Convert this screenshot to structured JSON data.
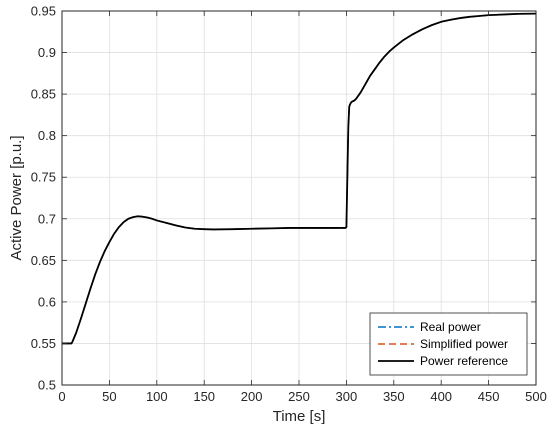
{
  "chart_data": {
    "type": "line",
    "title": "",
    "xlabel": "Time [s]",
    "ylabel": "Active Power [p.u.]",
    "xlim": [
      0,
      500
    ],
    "ylim": [
      0.5,
      0.95
    ],
    "xticks": [
      0,
      50,
      100,
      150,
      200,
      250,
      300,
      350,
      400,
      450,
      500
    ],
    "yticks": [
      0.5,
      0.55,
      0.6,
      0.65,
      0.7,
      0.75,
      0.8,
      0.85,
      0.9,
      0.95
    ],
    "grid": true,
    "legend_position": "bottom-right",
    "series": [
      {
        "name": "Real power",
        "color": "#0072BD",
        "line_style": "dash-dot",
        "x": [
          0,
          10,
          11,
          15,
          20,
          25,
          30,
          35,
          40,
          45,
          50,
          55,
          60,
          65,
          70,
          75,
          80,
          85,
          90,
          95,
          100,
          110,
          120,
          130,
          140,
          150,
          160,
          180,
          200,
          220,
          240,
          260,
          280,
          299,
          300,
          301,
          302,
          303,
          304,
          305,
          306,
          308,
          310,
          315,
          320,
          325,
          330,
          335,
          340,
          345,
          350,
          360,
          370,
          380,
          390,
          400,
          410,
          420,
          430,
          440,
          450,
          460,
          470,
          480,
          490,
          500
        ],
        "y": [
          0.55,
          0.55,
          0.552,
          0.563,
          0.58,
          0.598,
          0.616,
          0.633,
          0.648,
          0.661,
          0.672,
          0.682,
          0.69,
          0.696,
          0.7,
          0.702,
          0.703,
          0.7025,
          0.7015,
          0.7,
          0.698,
          0.695,
          0.692,
          0.6895,
          0.688,
          0.6875,
          0.6872,
          0.6875,
          0.688,
          0.6885,
          0.689,
          0.689,
          0.689,
          0.689,
          0.69,
          0.75,
          0.81,
          0.835,
          0.838,
          0.84,
          0.841,
          0.842,
          0.844,
          0.852,
          0.862,
          0.872,
          0.88,
          0.888,
          0.895,
          0.901,
          0.906,
          0.915,
          0.922,
          0.928,
          0.933,
          0.937,
          0.9395,
          0.9415,
          0.943,
          0.944,
          0.945,
          0.9455,
          0.946,
          0.9465,
          0.9467,
          0.9468
        ]
      },
      {
        "name": "Simplified power",
        "color": "#D95319",
        "line_style": "dashed",
        "x": [
          0,
          10,
          11,
          15,
          20,
          25,
          30,
          35,
          40,
          45,
          50,
          55,
          60,
          65,
          70,
          75,
          80,
          85,
          90,
          95,
          100,
          110,
          120,
          130,
          140,
          150,
          160,
          180,
          200,
          220,
          240,
          260,
          280,
          299,
          300,
          301,
          302,
          303,
          304,
          305,
          306,
          308,
          310,
          315,
          320,
          325,
          330,
          335,
          340,
          345,
          350,
          360,
          370,
          380,
          390,
          400,
          410,
          420,
          430,
          440,
          450,
          460,
          470,
          480,
          490,
          500
        ],
        "y": [
          0.55,
          0.55,
          0.552,
          0.563,
          0.58,
          0.598,
          0.616,
          0.633,
          0.648,
          0.661,
          0.672,
          0.682,
          0.69,
          0.696,
          0.7,
          0.702,
          0.703,
          0.7025,
          0.7015,
          0.7,
          0.698,
          0.695,
          0.692,
          0.6895,
          0.688,
          0.6875,
          0.6872,
          0.6875,
          0.688,
          0.6885,
          0.689,
          0.689,
          0.689,
          0.689,
          0.69,
          0.75,
          0.81,
          0.835,
          0.838,
          0.84,
          0.841,
          0.842,
          0.844,
          0.852,
          0.862,
          0.872,
          0.88,
          0.888,
          0.895,
          0.901,
          0.906,
          0.915,
          0.922,
          0.928,
          0.933,
          0.937,
          0.9395,
          0.9415,
          0.943,
          0.944,
          0.945,
          0.9455,
          0.946,
          0.9465,
          0.9467,
          0.9468
        ]
      },
      {
        "name": "Power reference",
        "color": "#000000",
        "line_style": "solid",
        "x": [
          0,
          10,
          11,
          15,
          20,
          25,
          30,
          35,
          40,
          45,
          50,
          55,
          60,
          65,
          70,
          75,
          80,
          85,
          90,
          95,
          100,
          110,
          120,
          130,
          140,
          150,
          160,
          180,
          200,
          220,
          240,
          260,
          280,
          299,
          300,
          301,
          302,
          303,
          304,
          305,
          306,
          308,
          310,
          315,
          320,
          325,
          330,
          335,
          340,
          345,
          350,
          360,
          370,
          380,
          390,
          400,
          410,
          420,
          430,
          440,
          450,
          460,
          470,
          480,
          490,
          500
        ],
        "y": [
          0.55,
          0.55,
          0.552,
          0.563,
          0.58,
          0.598,
          0.616,
          0.633,
          0.648,
          0.661,
          0.672,
          0.682,
          0.69,
          0.696,
          0.7,
          0.702,
          0.703,
          0.7025,
          0.7015,
          0.7,
          0.698,
          0.695,
          0.692,
          0.6895,
          0.688,
          0.6875,
          0.6872,
          0.6875,
          0.688,
          0.6885,
          0.689,
          0.689,
          0.689,
          0.689,
          0.69,
          0.75,
          0.81,
          0.835,
          0.838,
          0.84,
          0.841,
          0.842,
          0.844,
          0.852,
          0.862,
          0.872,
          0.88,
          0.888,
          0.895,
          0.901,
          0.906,
          0.915,
          0.922,
          0.928,
          0.933,
          0.937,
          0.9395,
          0.9415,
          0.943,
          0.944,
          0.945,
          0.9455,
          0.946,
          0.9465,
          0.9467,
          0.9468
        ]
      }
    ]
  }
}
